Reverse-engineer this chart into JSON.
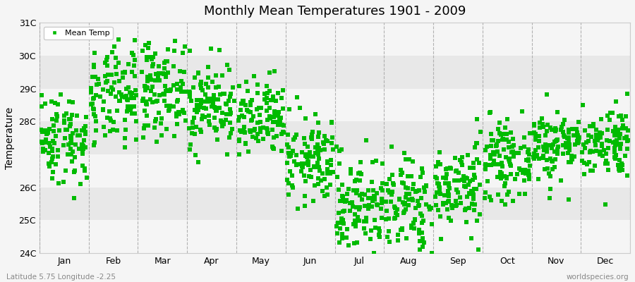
{
  "title": "Monthly Mean Temperatures 1901 - 2009",
  "ylabel": "Temperature",
  "xlabel_labels": [
    "Jan",
    "Feb",
    "Mar",
    "Apr",
    "May",
    "Jun",
    "Jul",
    "Aug",
    "Sep",
    "Oct",
    "Nov",
    "Dec"
  ],
  "subtitle": "Latitude 5.75 Longitude -2.25",
  "watermark": "worldspecies.org",
  "ylim": [
    24.0,
    31.0
  ],
  "yticks": [
    24,
    25,
    26,
    27,
    28,
    29,
    30,
    31
  ],
  "ytick_labels": [
    "24C",
    "25C",
    "26C",
    "",
    "28C",
    "29C",
    "30C",
    "31C"
  ],
  "marker_color": "#00bb00",
  "marker": "s",
  "marker_size": 4,
  "bg_color": "#f5f5f5",
  "band_colors_even": "#f5f5f5",
  "band_colors_odd": "#e8e8e8",
  "vline_color": "#aaaaaa",
  "monthly_means": [
    27.5,
    28.7,
    29.0,
    28.5,
    28.0,
    26.8,
    25.5,
    25.4,
    26.0,
    26.8,
    27.3,
    27.4
  ],
  "monthly_stds": [
    0.7,
    0.75,
    0.7,
    0.65,
    0.6,
    0.65,
    0.75,
    0.8,
    0.65,
    0.55,
    0.55,
    0.55
  ],
  "n_years": 109,
  "seed": 42
}
